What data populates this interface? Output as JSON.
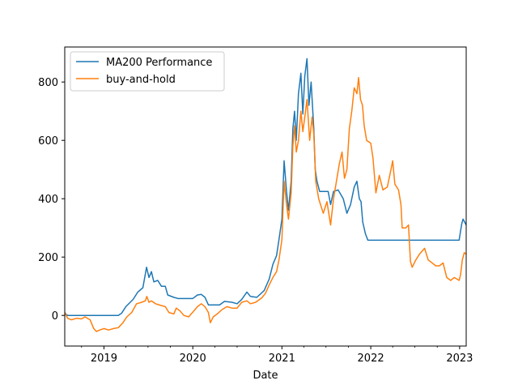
{
  "chart_data": {
    "type": "line",
    "xlabel": "Date",
    "ylabel": "",
    "title": "",
    "xlim": [
      "2018-07-24",
      "2023-01-28"
    ],
    "ylim": [
      -105,
      920
    ],
    "x_ticks": [
      "2019",
      "2020",
      "2021",
      "2022",
      "2023"
    ],
    "y_ticks": [
      0,
      200,
      400,
      600,
      800
    ],
    "grid": false,
    "legend_position": "upper-left",
    "series": [
      {
        "name": "MA200 Performance",
        "color": "#1f77b4",
        "points": [
          [
            "2018-07-24",
            10
          ],
          [
            "2018-07-29",
            4
          ],
          [
            "2018-08-05",
            0
          ],
          [
            "2019-03-01",
            0
          ],
          [
            "2019-03-15",
            8
          ],
          [
            "2019-04-01",
            30
          ],
          [
            "2019-05-01",
            55
          ],
          [
            "2019-05-20",
            80
          ],
          [
            "2019-06-10",
            95
          ],
          [
            "2019-06-25",
            165
          ],
          [
            "2019-07-05",
            130
          ],
          [
            "2019-07-15",
            150
          ],
          [
            "2019-07-25",
            115
          ],
          [
            "2019-08-10",
            120
          ],
          [
            "2019-08-25",
            100
          ],
          [
            "2019-09-10",
            100
          ],
          [
            "2019-09-20",
            70
          ],
          [
            "2019-10-15",
            62
          ],
          [
            "2019-11-01",
            58
          ],
          [
            "2020-01-01",
            58
          ],
          [
            "2020-01-20",
            70
          ],
          [
            "2020-02-05",
            72
          ],
          [
            "2020-02-20",
            62
          ],
          [
            "2020-03-05",
            36
          ],
          [
            "2020-04-20",
            36
          ],
          [
            "2020-05-10",
            48
          ],
          [
            "2020-06-10",
            45
          ],
          [
            "2020-07-01",
            40
          ],
          [
            "2020-07-20",
            55
          ],
          [
            "2020-08-10",
            80
          ],
          [
            "2020-08-25",
            65
          ],
          [
            "2020-09-20",
            62
          ],
          [
            "2020-10-20",
            85
          ],
          [
            "2020-11-10",
            125
          ],
          [
            "2020-11-25",
            175
          ],
          [
            "2020-12-10",
            205
          ],
          [
            "2020-12-20",
            260
          ],
          [
            "2021-01-01",
            330
          ],
          [
            "2021-01-10",
            530
          ],
          [
            "2021-01-20",
            425
          ],
          [
            "2021-01-28",
            360
          ],
          [
            "2021-02-08",
            460
          ],
          [
            "2021-02-15",
            640
          ],
          [
            "2021-02-22",
            700
          ],
          [
            "2021-03-01",
            600
          ],
          [
            "2021-03-10",
            760
          ],
          [
            "2021-03-20",
            830
          ],
          [
            "2021-03-28",
            690
          ],
          [
            "2021-04-05",
            820
          ],
          [
            "2021-04-14",
            880
          ],
          [
            "2021-04-22",
            720
          ],
          [
            "2021-05-01",
            800
          ],
          [
            "2021-05-12",
            640
          ],
          [
            "2021-05-18",
            500
          ],
          [
            "2021-05-25",
            460
          ],
          [
            "2021-06-05",
            425
          ],
          [
            "2021-07-10",
            425
          ],
          [
            "2021-07-20",
            380
          ],
          [
            "2021-08-01",
            425
          ],
          [
            "2021-08-20",
            430
          ],
          [
            "2021-09-10",
            400
          ],
          [
            "2021-09-25",
            350
          ],
          [
            "2021-10-10",
            380
          ],
          [
            "2021-10-25",
            440
          ],
          [
            "2021-11-05",
            460
          ],
          [
            "2021-11-15",
            400
          ],
          [
            "2021-11-22",
            390
          ],
          [
            "2021-11-29",
            320
          ],
          [
            "2021-12-10",
            280
          ],
          [
            "2021-12-20",
            258
          ],
          [
            "2022-12-30",
            258
          ],
          [
            "2023-01-05",
            290
          ],
          [
            "2023-01-10",
            315
          ],
          [
            "2023-01-15",
            330
          ],
          [
            "2023-01-28",
            310
          ]
        ]
      },
      {
        "name": "buy-and-hold",
        "color": "#ff7f0e",
        "points": [
          [
            "2018-07-24",
            10
          ],
          [
            "2018-08-05",
            -10
          ],
          [
            "2018-08-20",
            -15
          ],
          [
            "2018-09-10",
            -10
          ],
          [
            "2018-10-01",
            -12
          ],
          [
            "2018-10-15",
            -5
          ],
          [
            "2018-11-05",
            -15
          ],
          [
            "2018-11-20",
            -45
          ],
          [
            "2018-12-01",
            -55
          ],
          [
            "2018-12-15",
            -50
          ],
          [
            "2019-01-01",
            -45
          ],
          [
            "2019-01-20",
            -50
          ],
          [
            "2019-02-10",
            -45
          ],
          [
            "2019-03-01",
            -42
          ],
          [
            "2019-03-20",
            -25
          ],
          [
            "2019-04-05",
            -5
          ],
          [
            "2019-04-25",
            10
          ],
          [
            "2019-05-15",
            40
          ],
          [
            "2019-06-05",
            45
          ],
          [
            "2019-06-20",
            50
          ],
          [
            "2019-06-26",
            65
          ],
          [
            "2019-07-05",
            45
          ],
          [
            "2019-07-15",
            50
          ],
          [
            "2019-08-01",
            40
          ],
          [
            "2019-08-20",
            35
          ],
          [
            "2019-09-10",
            30
          ],
          [
            "2019-09-25",
            10
          ],
          [
            "2019-10-15",
            5
          ],
          [
            "2019-10-25",
            25
          ],
          [
            "2019-11-10",
            15
          ],
          [
            "2019-11-25",
            0
          ],
          [
            "2019-12-15",
            -5
          ],
          [
            "2020-01-05",
            15
          ],
          [
            "2020-01-20",
            30
          ],
          [
            "2020-02-05",
            40
          ],
          [
            "2020-02-20",
            30
          ],
          [
            "2020-03-05",
            10
          ],
          [
            "2020-03-13",
            -25
          ],
          [
            "2020-03-25",
            -5
          ],
          [
            "2020-04-10",
            5
          ],
          [
            "2020-04-30",
            20
          ],
          [
            "2020-05-20",
            30
          ],
          [
            "2020-06-10",
            25
          ],
          [
            "2020-07-01",
            25
          ],
          [
            "2020-07-20",
            45
          ],
          [
            "2020-08-10",
            50
          ],
          [
            "2020-08-25",
            40
          ],
          [
            "2020-09-15",
            45
          ],
          [
            "2020-10-10",
            60
          ],
          [
            "2020-10-25",
            75
          ],
          [
            "2020-11-10",
            105
          ],
          [
            "2020-11-25",
            130
          ],
          [
            "2020-12-10",
            150
          ],
          [
            "2020-12-20",
            190
          ],
          [
            "2021-01-01",
            260
          ],
          [
            "2021-01-10",
            460
          ],
          [
            "2021-01-20",
            380
          ],
          [
            "2021-01-28",
            330
          ],
          [
            "2021-02-08",
            420
          ],
          [
            "2021-02-15",
            580
          ],
          [
            "2021-02-22",
            650
          ],
          [
            "2021-03-01",
            560
          ],
          [
            "2021-03-10",
            600
          ],
          [
            "2021-03-20",
            700
          ],
          [
            "2021-03-28",
            630
          ],
          [
            "2021-04-05",
            680
          ],
          [
            "2021-04-14",
            740
          ],
          [
            "2021-04-25",
            600
          ],
          [
            "2021-05-05",
            680
          ],
          [
            "2021-05-12",
            620
          ],
          [
            "2021-05-20",
            460
          ],
          [
            "2021-06-01",
            400
          ],
          [
            "2021-06-20",
            350
          ],
          [
            "2021-07-05",
            390
          ],
          [
            "2021-07-20",
            310
          ],
          [
            "2021-08-01",
            400
          ],
          [
            "2021-08-15",
            470
          ],
          [
            "2021-08-25",
            520
          ],
          [
            "2021-09-05",
            560
          ],
          [
            "2021-09-15",
            470
          ],
          [
            "2021-09-25",
            500
          ],
          [
            "2021-10-05",
            640
          ],
          [
            "2021-10-15",
            700
          ],
          [
            "2021-10-25",
            780
          ],
          [
            "2021-11-05",
            760
          ],
          [
            "2021-11-12",
            815
          ],
          [
            "2021-11-20",
            740
          ],
          [
            "2021-11-28",
            720
          ],
          [
            "2021-12-05",
            650
          ],
          [
            "2021-12-15",
            600
          ],
          [
            "2022-01-01",
            590
          ],
          [
            "2022-01-10",
            540
          ],
          [
            "2022-01-22",
            420
          ],
          [
            "2022-02-05",
            480
          ],
          [
            "2022-02-20",
            430
          ],
          [
            "2022-03-10",
            440
          ],
          [
            "2022-03-25",
            500
          ],
          [
            "2022-04-01",
            530
          ],
          [
            "2022-04-10",
            450
          ],
          [
            "2022-04-25",
            430
          ],
          [
            "2022-05-05",
            380
          ],
          [
            "2022-05-10",
            300
          ],
          [
            "2022-05-25",
            300
          ],
          [
            "2022-06-05",
            310
          ],
          [
            "2022-06-13",
            185
          ],
          [
            "2022-06-20",
            165
          ],
          [
            "2022-07-05",
            190
          ],
          [
            "2022-07-20",
            210
          ],
          [
            "2022-08-10",
            230
          ],
          [
            "2022-08-25",
            190
          ],
          [
            "2022-09-10",
            180
          ],
          [
            "2022-09-25",
            170
          ],
          [
            "2022-10-10",
            170
          ],
          [
            "2022-10-25",
            180
          ],
          [
            "2022-11-09",
            130
          ],
          [
            "2022-11-25",
            120
          ],
          [
            "2022-12-10",
            130
          ],
          [
            "2022-12-30",
            120
          ],
          [
            "2023-01-05",
            140
          ],
          [
            "2023-01-12",
            190
          ],
          [
            "2023-01-20",
            215
          ],
          [
            "2023-01-28",
            210
          ]
        ]
      }
    ]
  }
}
